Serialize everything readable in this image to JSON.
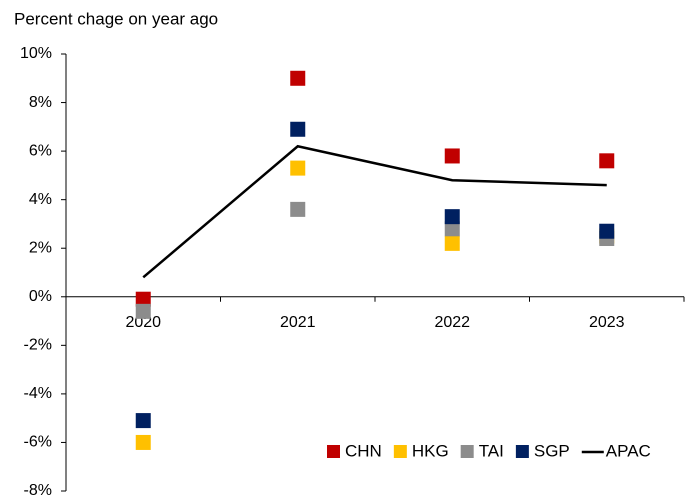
{
  "chart_data": {
    "type": "scatter-line",
    "title": "Percent chage on year ago",
    "categories": [
      "2020",
      "2021",
      "2022",
      "2023"
    ],
    "series": [
      {
        "name": "CHN",
        "color": "#c00000",
        "kind": "marker",
        "values": [
          -0.1,
          9.0,
          5.8,
          5.6
        ]
      },
      {
        "name": "HKG",
        "color": "#ffc000",
        "kind": "marker",
        "values": [
          -6.0,
          5.3,
          2.2,
          2.5
        ]
      },
      {
        "name": "TAI",
        "color": "#8c8c8c",
        "kind": "marker",
        "values": [
          -0.6,
          3.6,
          2.8,
          2.4
        ]
      },
      {
        "name": "SGP",
        "color": "#002060",
        "kind": "marker",
        "values": [
          -5.1,
          6.9,
          3.3,
          2.7
        ]
      },
      {
        "name": "APAC",
        "color": "#000000",
        "kind": "line",
        "values": [
          0.8,
          6.2,
          4.8,
          4.6
        ]
      }
    ],
    "ylim": [
      -8,
      10
    ],
    "yticks": [
      {
        "value": -8,
        "label": "-8%"
      },
      {
        "value": -6,
        "label": "-6%"
      },
      {
        "value": -4,
        "label": "-4%"
      },
      {
        "value": -2,
        "label": "-2%"
      },
      {
        "value": 0,
        "label": "0%"
      },
      {
        "value": 2,
        "label": "2%"
      },
      {
        "value": 4,
        "label": "4%"
      },
      {
        "value": 6,
        "label": "6%"
      },
      {
        "value": 8,
        "label": "8%"
      },
      {
        "value": 10,
        "label": "10%"
      }
    ],
    "legend": "lower right"
  }
}
